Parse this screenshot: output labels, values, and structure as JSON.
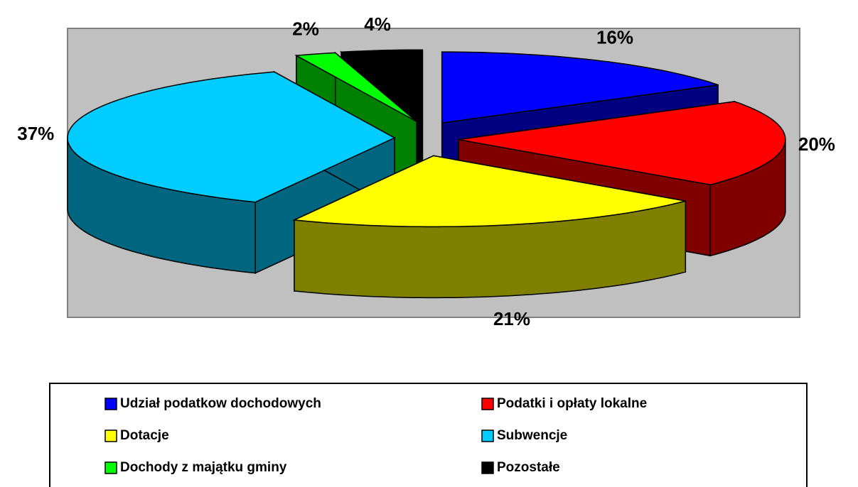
{
  "chart_data": {
    "type": "pie",
    "categories": [
      "Udział podatkow dochodowych",
      "Podatki i opłaty lokalne",
      "Dotacje",
      "Subwencje",
      "Dochody z majątku gminy",
      "Pozostałe"
    ],
    "values": [
      16,
      20,
      21,
      37,
      2,
      4
    ],
    "value_labels": [
      "16%",
      "20%",
      "21%",
      "37%",
      "2%",
      "4%"
    ],
    "colors": [
      "#0000ff",
      "#ff0000",
      "#ffff00",
      "#00ccff",
      "#00ff00",
      "#000000"
    ],
    "side_colors": [
      "#000080",
      "#800000",
      "#808000",
      "#006680",
      "#008000",
      "#000000"
    ],
    "legend": "bottom"
  }
}
